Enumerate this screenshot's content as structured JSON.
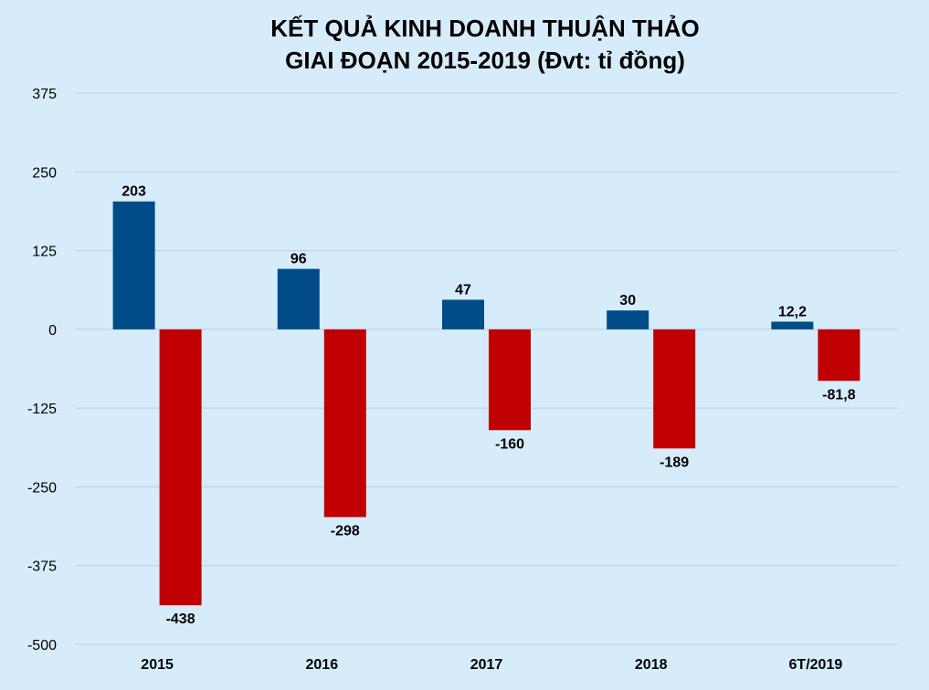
{
  "chart_data": {
    "type": "bar",
    "title_lines": [
      "KẾT QUẢ KINH DOANH THUẬN THẢO",
      "GIAI ĐOẠN 2015-2019 (Đvt: tỉ đồng)"
    ],
    "categories": [
      "2015",
      "2016",
      "2017",
      "2018",
      "6T/2019"
    ],
    "series": [
      {
        "color": "#004c88",
        "values": [
          203,
          96,
          47,
          30,
          12.2
        ],
        "labels": [
          "203",
          "96",
          "47",
          "30",
          "12,2"
        ]
      },
      {
        "color": "#c00000",
        "values": [
          -438,
          -298,
          -160,
          -189,
          -81.8
        ],
        "labels": [
          "-438",
          "-298",
          "-160",
          "-189",
          "-81,8"
        ]
      }
    ],
    "ylim": [
      -500,
      375
    ],
    "yticks": [
      375,
      250,
      125,
      0,
      -125,
      -250,
      -375,
      -500
    ],
    "grid": true,
    "legend": "none"
  }
}
